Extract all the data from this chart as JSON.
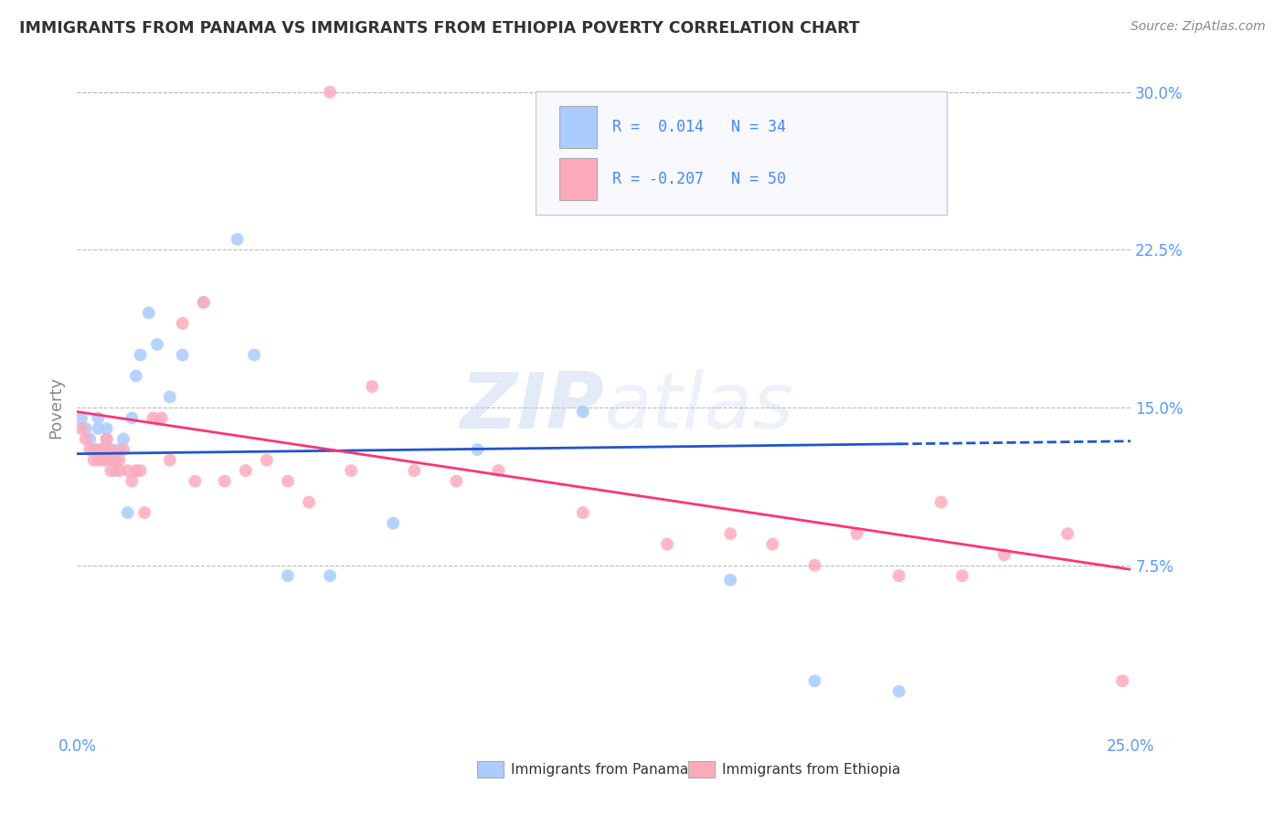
{
  "title": "IMMIGRANTS FROM PANAMA VS IMMIGRANTS FROM ETHIOPIA POVERTY CORRELATION CHART",
  "source": "Source: ZipAtlas.com",
  "ylabel": "Poverty",
  "xlim": [
    0.0,
    0.25
  ],
  "ylim": [
    0.0,
    0.3
  ],
  "ytick_labels": [
    "30.0%",
    "22.5%",
    "15.0%",
    "7.5%"
  ],
  "ytick_positions": [
    0.3,
    0.225,
    0.15,
    0.075
  ],
  "background_color": "#ffffff",
  "grid_color": "#bbbbbb",
  "title_color": "#333333",
  "tick_color": "#5599ff",
  "watermark": "ZIPatlas",
  "legend1_label": "Immigrants from Panama",
  "legend2_label": "Immigrants from Ethiopia",
  "R1": "0.014",
  "N1": "34",
  "R2": "-0.207",
  "N2": "50",
  "color_panama": "#aaccff",
  "color_ethiopia": "#ffaabb",
  "trend_color_panama": "#2255cc",
  "trend_color_ethiopia": "#ff3377",
  "panama_x": [
    0.001,
    0.002,
    0.003,
    0.004,
    0.005,
    0.005,
    0.006,
    0.007,
    0.007,
    0.008,
    0.008,
    0.009,
    0.009,
    0.01,
    0.011,
    0.012,
    0.013,
    0.014,
    0.015,
    0.017,
    0.019,
    0.022,
    0.025,
    0.03,
    0.038,
    0.042,
    0.05,
    0.06,
    0.075,
    0.095,
    0.12,
    0.155,
    0.175,
    0.195
  ],
  "panama_y": [
    0.145,
    0.14,
    0.135,
    0.13,
    0.14,
    0.145,
    0.13,
    0.135,
    0.14,
    0.125,
    0.13,
    0.12,
    0.125,
    0.13,
    0.135,
    0.1,
    0.145,
    0.165,
    0.175,
    0.195,
    0.18,
    0.155,
    0.175,
    0.2,
    0.23,
    0.175,
    0.07,
    0.07,
    0.095,
    0.13,
    0.148,
    0.068,
    0.02,
    0.015
  ],
  "ethiopia_x": [
    0.001,
    0.002,
    0.003,
    0.004,
    0.005,
    0.005,
    0.006,
    0.006,
    0.007,
    0.007,
    0.008,
    0.008,
    0.009,
    0.01,
    0.01,
    0.011,
    0.012,
    0.013,
    0.014,
    0.015,
    0.016,
    0.018,
    0.02,
    0.022,
    0.025,
    0.028,
    0.03,
    0.035,
    0.04,
    0.045,
    0.05,
    0.055,
    0.06,
    0.065,
    0.07,
    0.08,
    0.09,
    0.1,
    0.12,
    0.14,
    0.155,
    0.165,
    0.175,
    0.185,
    0.195,
    0.205,
    0.21,
    0.22,
    0.235,
    0.248
  ],
  "ethiopia_y": [
    0.14,
    0.135,
    0.13,
    0.125,
    0.13,
    0.125,
    0.13,
    0.125,
    0.135,
    0.125,
    0.12,
    0.13,
    0.125,
    0.12,
    0.125,
    0.13,
    0.12,
    0.115,
    0.12,
    0.12,
    0.1,
    0.145,
    0.145,
    0.125,
    0.19,
    0.115,
    0.2,
    0.115,
    0.12,
    0.125,
    0.115,
    0.105,
    0.3,
    0.12,
    0.16,
    0.12,
    0.115,
    0.12,
    0.1,
    0.085,
    0.09,
    0.085,
    0.075,
    0.09,
    0.07,
    0.105,
    0.07,
    0.08,
    0.09,
    0.02
  ],
  "trend_panama_x0": 0.0,
  "trend_panama_x1": 0.25,
  "trend_panama_y0": 0.128,
  "trend_panama_y1": 0.134,
  "trend_panama_solid_end": 0.195,
  "trend_ethiopia_x0": 0.0,
  "trend_ethiopia_x1": 0.25,
  "trend_ethiopia_y0": 0.148,
  "trend_ethiopia_y1": 0.073
}
